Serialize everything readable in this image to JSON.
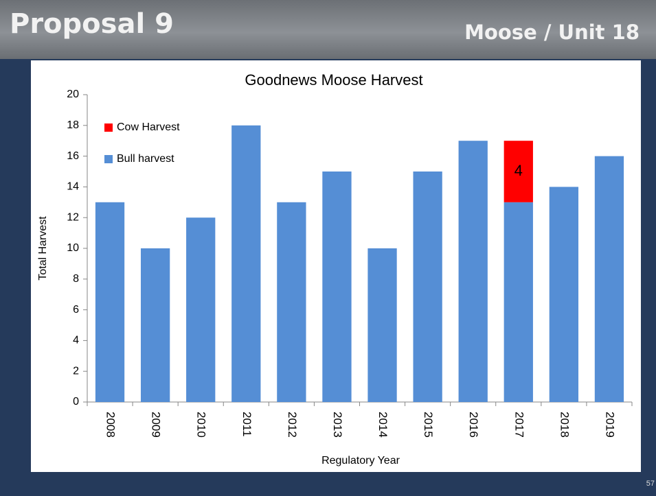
{
  "header": {
    "title": "Proposal 9",
    "subtitle": "Moose / Unit 18"
  },
  "page_number": "57",
  "chart_data": {
    "type": "stacked-bar",
    "title": "Goodnews Moose Harvest",
    "x_label": "Regulatory Year",
    "y_label": "Total Harvest",
    "categories": [
      "2008",
      "2009",
      "2010",
      "2011",
      "2012",
      "2013",
      "2014",
      "2015",
      "2016",
      "2017",
      "2018",
      "2019"
    ],
    "series": [
      {
        "name": "Bull harvest",
        "color": "#558ed5",
        "values": [
          13,
          10,
          12,
          18,
          13,
          15,
          10,
          15,
          17,
          13,
          14,
          16
        ]
      },
      {
        "name": "Cow Harvest",
        "color": "#ff0000",
        "values": [
          null,
          null,
          null,
          null,
          null,
          null,
          null,
          null,
          null,
          4,
          null,
          null
        ],
        "data_labels": true
      }
    ],
    "ylim": [
      0,
      20
    ],
    "yticks": [
      0,
      2,
      4,
      6,
      8,
      10,
      12,
      14,
      16,
      18,
      20
    ],
    "grid": false,
    "legend": "top-left"
  }
}
